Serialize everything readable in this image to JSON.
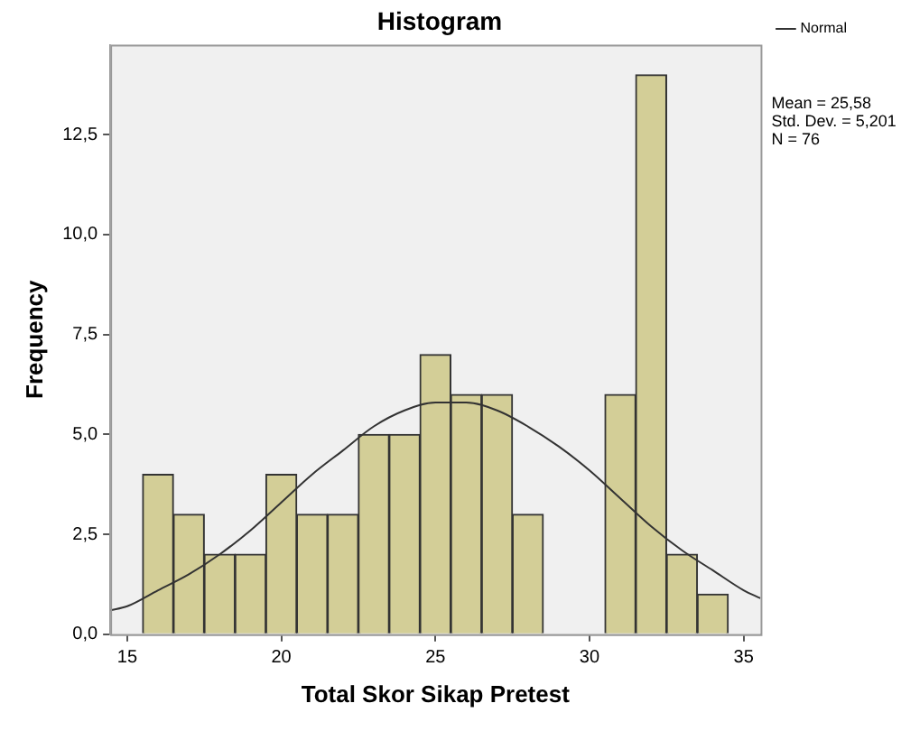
{
  "chart_data": {
    "type": "histogram",
    "title": "Histogram",
    "xlabel": "Total Skor Sikap Pretest",
    "ylabel": "Frequency",
    "bins": [
      15.5,
      16.5,
      17.5,
      18.5,
      19.5,
      20.5,
      21.5,
      22.5,
      23.5,
      24.5,
      25.5,
      26.5,
      27.5,
      28.5,
      29.5,
      30.5,
      31.5,
      32.5,
      33.5,
      34.5
    ],
    "color": "#d3ce97",
    "values": [
      4,
      3,
      2,
      2,
      4,
      3,
      3,
      5,
      5,
      7,
      6,
      6,
      3,
      0,
      0,
      6,
      14,
      2,
      1
    ],
    "series": [
      {
        "type": "line",
        "name": "Normal",
        "color": "#333333",
        "x": [
          14.45,
          15,
          16,
          17,
          18,
          19,
          20,
          21,
          22,
          23,
          24,
          25,
          25.58,
          26,
          27,
          28,
          29,
          30,
          31,
          32,
          33,
          34,
          35,
          35.55
        ],
        "values": [
          0.6,
          0.7,
          1.1,
          1.5,
          2.0,
          2.6,
          3.3,
          4.0,
          4.6,
          5.2,
          5.6,
          5.8,
          5.8,
          5.8,
          5.6,
          5.2,
          4.7,
          4.1,
          3.4,
          2.7,
          2.1,
          1.6,
          1.1,
          0.9
        ]
      }
    ],
    "xlim": [
      14.45,
      35.55
    ],
    "xticks": [
      15,
      20,
      25,
      30,
      35
    ],
    "ylim": [
      0,
      14.75
    ],
    "yticks": [
      {
        "value": 0,
        "label": "0,0"
      },
      {
        "value": 2.5,
        "label": "2,5"
      },
      {
        "value": 5,
        "label": "5,0"
      },
      {
        "value": 7.5,
        "label": "7,5"
      },
      {
        "value": 10,
        "label": "10,0"
      },
      {
        "value": 12.5,
        "label": "12,5"
      }
    ],
    "grid": false,
    "legend": "top right",
    "marker": "none",
    "line_style": "solid",
    "annotations": [
      "Mean = 25,58",
      "Std. Dev. = 5,201",
      "N = 76"
    ]
  }
}
